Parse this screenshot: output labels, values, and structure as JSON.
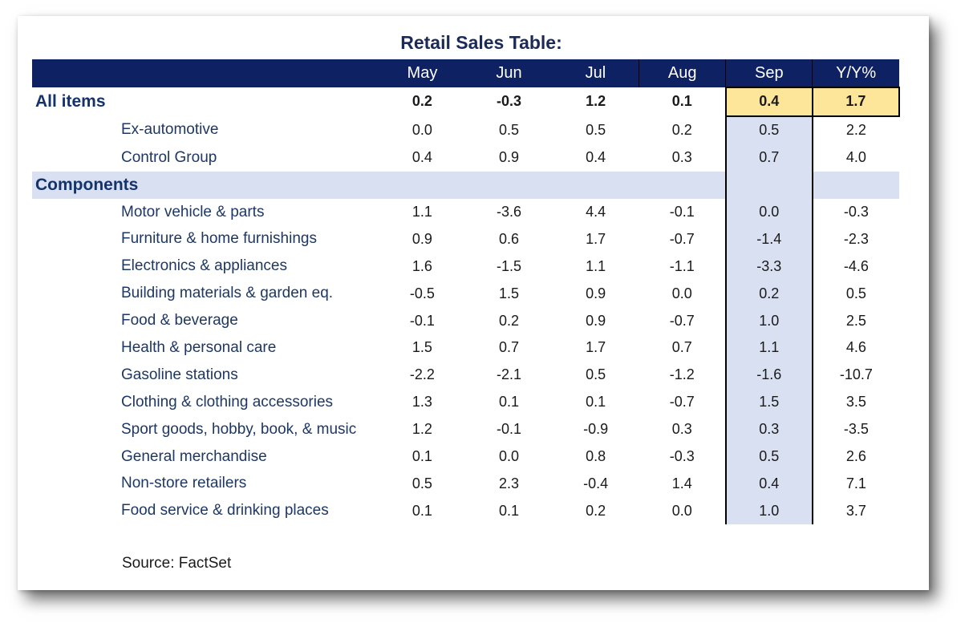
{
  "title": "Retail Sales Table:",
  "headers": [
    "",
    "May",
    "Jun",
    "Jul",
    "Aug",
    "Sep",
    "Y/Y%"
  ],
  "rows": [
    {
      "label": "All items",
      "values": [
        "0.2",
        "-0.3",
        "1.2",
        "0.1",
        "0.4",
        "1.7"
      ]
    },
    {
      "label": "Ex-automotive",
      "values": [
        "0.0",
        "0.5",
        "0.5",
        "0.2",
        "0.5",
        "2.2"
      ]
    },
    {
      "label": "Control Group",
      "values": [
        "0.4",
        "0.9",
        "0.4",
        "0.3",
        "0.7",
        "4.0"
      ]
    },
    {
      "label": "Components",
      "values": [
        "",
        "",
        "",
        "",
        "",
        ""
      ]
    },
    {
      "label": "Motor vehicle & parts",
      "values": [
        "1.1",
        "-3.6",
        "4.4",
        "-0.1",
        "0.0",
        "-0.3"
      ]
    },
    {
      "label": "Furniture & home furnishings",
      "values": [
        "0.9",
        "0.6",
        "1.7",
        "-0.7",
        "-1.4",
        "-2.3"
      ]
    },
    {
      "label": "Electronics & appliances",
      "values": [
        "1.6",
        "-1.5",
        "1.1",
        "-1.1",
        "-3.3",
        "-4.6"
      ]
    },
    {
      "label": "Building materials & garden eq.",
      "values": [
        "-0.5",
        "1.5",
        "0.9",
        "0.0",
        "0.2",
        "0.5"
      ]
    },
    {
      "label": "Food & beverage",
      "values": [
        "-0.1",
        "0.2",
        "0.9",
        "-0.7",
        "1.0",
        "2.5"
      ]
    },
    {
      "label": "Health & personal care",
      "values": [
        "1.5",
        "0.7",
        "1.7",
        "0.7",
        "1.1",
        "4.6"
      ]
    },
    {
      "label": "Gasoline stations",
      "values": [
        "-2.2",
        "-2.1",
        "0.5",
        "-1.2",
        "-1.6",
        "-10.7"
      ]
    },
    {
      "label": "Clothing & clothing accessories",
      "values": [
        "1.3",
        "0.1",
        "0.1",
        "-0.7",
        "1.5",
        "3.5"
      ]
    },
    {
      "label": "Sport goods, hobby, book, & music",
      "values": [
        "1.2",
        "-0.1",
        "-0.9",
        "0.3",
        "0.3",
        "-3.5"
      ]
    },
    {
      "label": "General merchandise",
      "values": [
        "0.1",
        "0.0",
        "0.8",
        "-0.3",
        "0.5",
        "2.6"
      ]
    },
    {
      "label": "Non-store retailers",
      "values": [
        "0.5",
        "2.3",
        "-0.4",
        "1.4",
        "0.4",
        "7.1"
      ]
    },
    {
      "label": "Food service & drinking places",
      "values": [
        "0.1",
        "0.1",
        "0.2",
        "0.0",
        "1.0",
        "3.7"
      ]
    }
  ],
  "source": "Source: FactSet",
  "colors": {
    "header_bg": "#0e2163",
    "section_bg": "#d9e0f2",
    "highlight": "#fde699",
    "label_text": "#1d3766"
  }
}
